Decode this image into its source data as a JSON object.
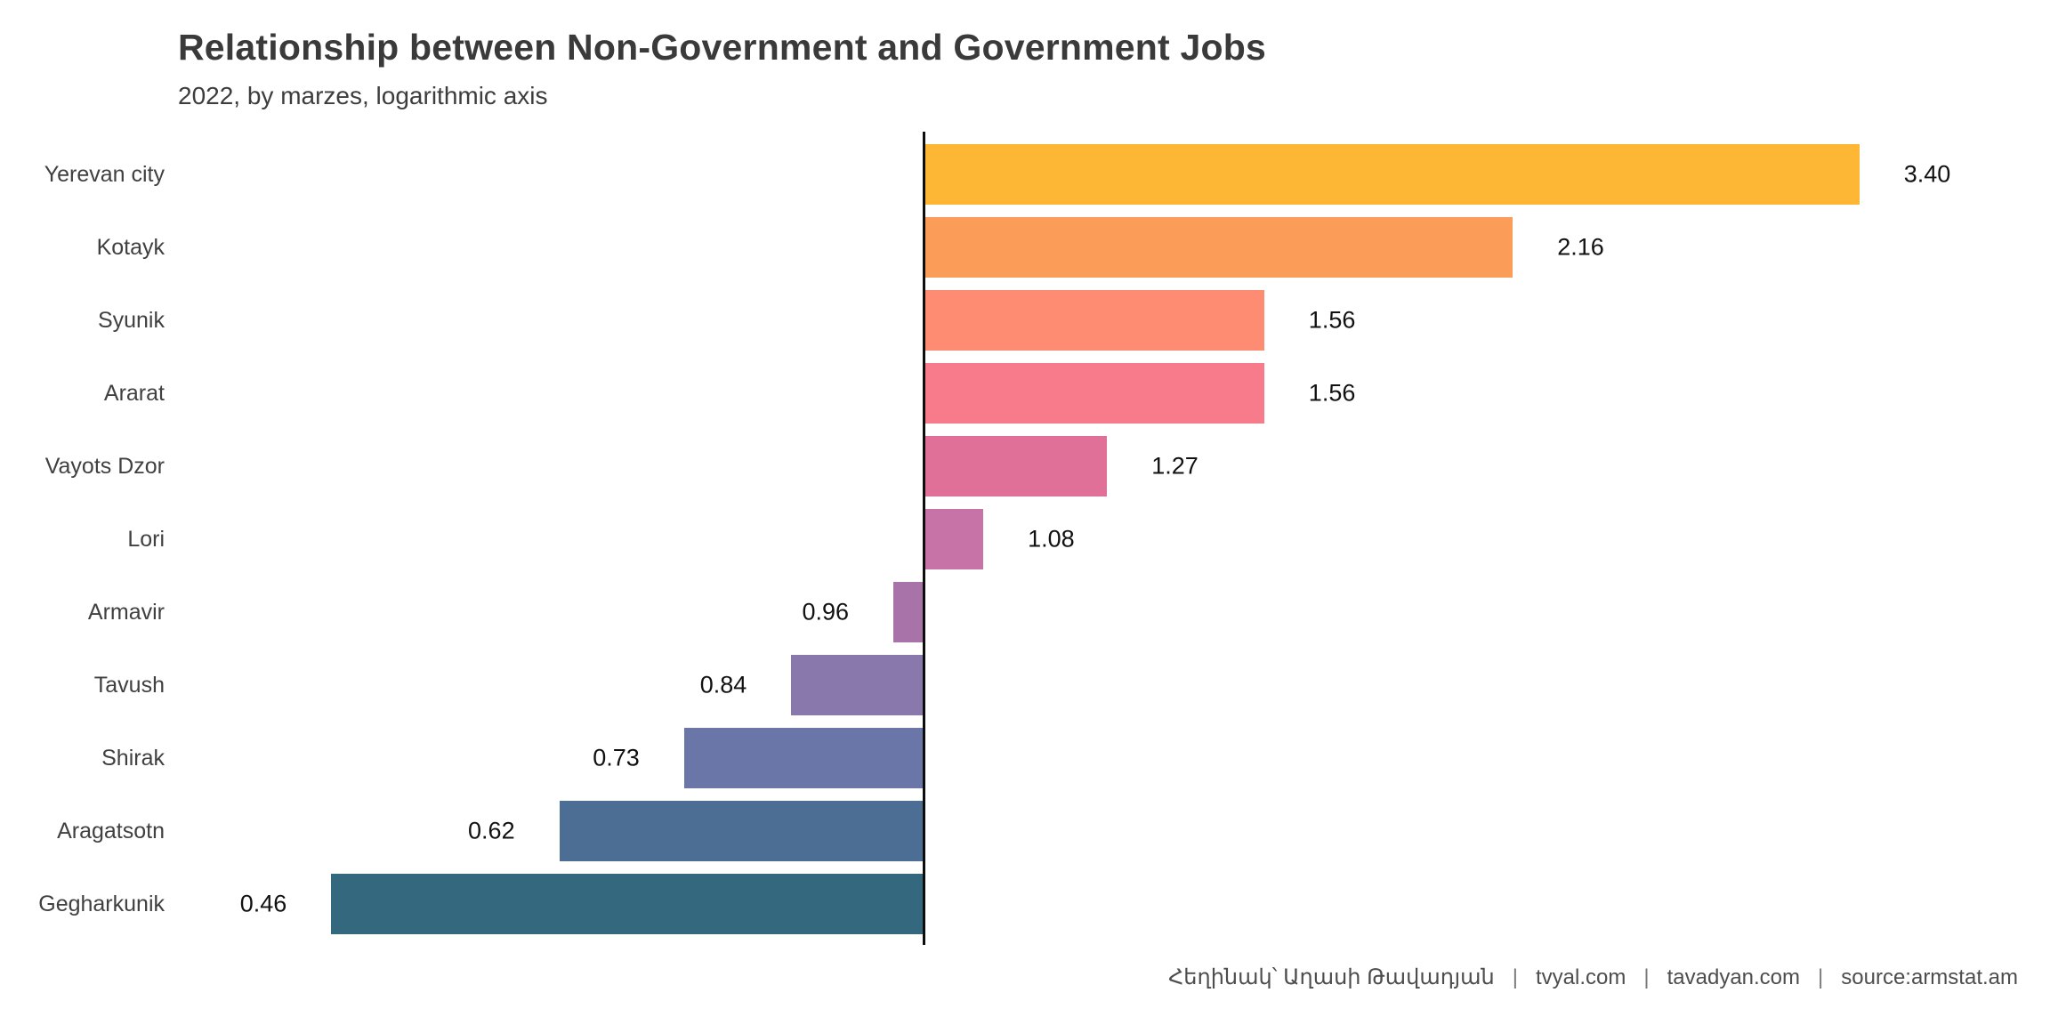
{
  "chart_data": {
    "type": "bar",
    "orientation": "horizontal",
    "diverging": true,
    "axis_scale": "log10",
    "baseline_value": 1,
    "grid": false,
    "legend": "none",
    "title": "Relationship between Non-Government and Government Jobs",
    "subtitle": "2022, by marzes, logarithmic axis",
    "categories": [
      "Yerevan city",
      "Kotayk",
      "Syunik",
      "Ararat",
      "Vayots Dzor",
      "Lori",
      "Armavir",
      "Tavush",
      "Shirak",
      "Aragatsotn",
      "Gegharkunik"
    ],
    "values": [
      3.4,
      2.16,
      1.56,
      1.56,
      1.27,
      1.08,
      0.96,
      0.84,
      0.73,
      0.62,
      0.46
    ],
    "value_labels": [
      "3.40",
      "2.16",
      "1.56",
      "1.56",
      "1.27",
      "1.08",
      "0.96",
      "0.84",
      "0.73",
      "0.62",
      "0.46"
    ],
    "bar_colors": [
      "#fdb735",
      "#fb9d59",
      "#fd8c72",
      "#f87b8b",
      "#e07097",
      "#c773a7",
      "#a873a8",
      "#8878ac",
      "#6a76a8",
      "#4c6e94",
      "#33687f"
    ],
    "axis_line_color": "#0d0d0d",
    "text_colors": {
      "title": "#3a3a3a",
      "category": "#404040",
      "value": "#111111",
      "footer": "#4d4d4d"
    }
  },
  "footer": {
    "segments": [
      "Հեղինակ՝ Աղասի Թավադյան",
      "tvyal.com",
      "tavadyan.com",
      "source:armstat.am"
    ],
    "separator": "|"
  }
}
